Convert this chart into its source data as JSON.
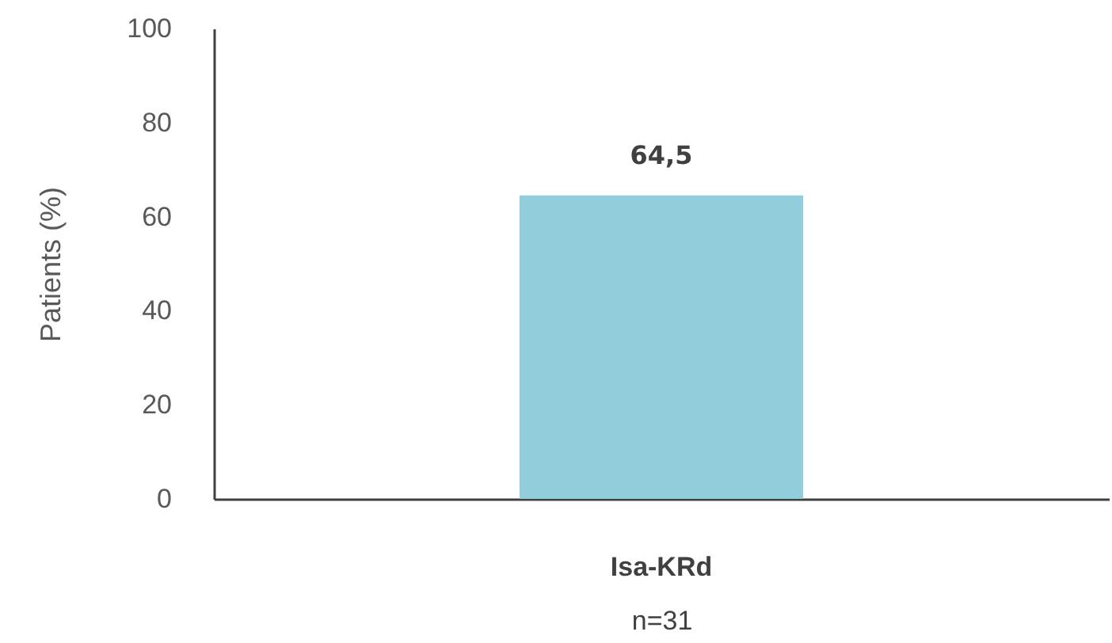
{
  "chart_data": {
    "type": "bar",
    "categories": [
      "Isa-KRd"
    ],
    "values": [
      64.5
    ],
    "color": "#92cddc",
    "value_labels": [
      "64,5"
    ],
    "ylabel": "Patients (%)",
    "xlabel": "n=31",
    "ylim": [
      0,
      100
    ],
    "yticks": [
      0,
      20,
      40,
      60,
      80,
      100
    ],
    "grid": false
  }
}
